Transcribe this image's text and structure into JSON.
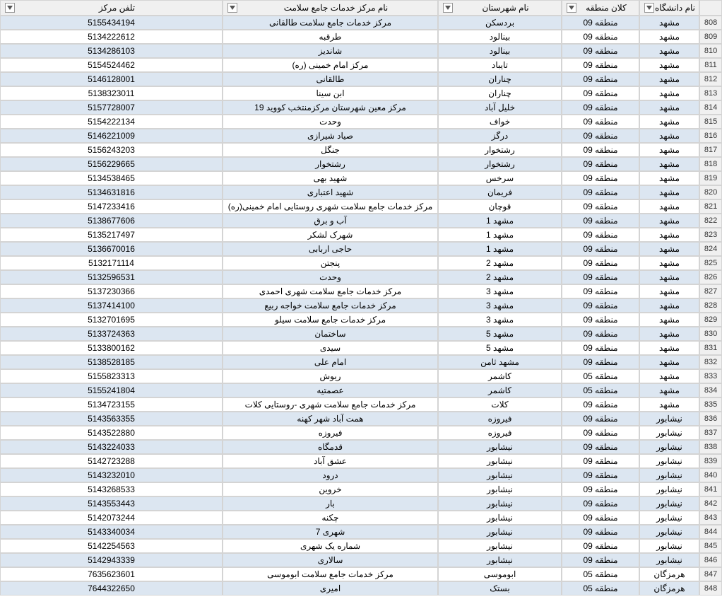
{
  "headers": [
    "نام دانشگاه",
    "کلان منطقه",
    "نام شهرستان",
    "نام مرکز خدمات جامع سلامت",
    "تلفن مرکز"
  ],
  "startRow": 808,
  "colors": {
    "even_row_bg": "#dce6f1",
    "odd_row_bg": "#ffffff",
    "header_bg": "#f0f0f0",
    "border": "#d4d4d4"
  },
  "rows": [
    {
      "n": 808,
      "uni": "مشهد",
      "region": "منطقه 09",
      "city": "بردسکن",
      "center": "مرکز خدمات جامع سلامت طالقانی",
      "phone": "5155434194"
    },
    {
      "n": 809,
      "uni": "مشهد",
      "region": "منطقه 09",
      "city": "بینالود",
      "center": "طرقبه",
      "phone": "5134222612"
    },
    {
      "n": 810,
      "uni": "مشهد",
      "region": "منطقه 09",
      "city": "بینالود",
      "center": "شاندیز",
      "phone": "5134286103"
    },
    {
      "n": 811,
      "uni": "مشهد",
      "region": "منطقه 09",
      "city": "تایباد",
      "center": "مرکز امام خمینی (ره)",
      "phone": "5154524462"
    },
    {
      "n": 812,
      "uni": "مشهد",
      "region": "منطقه 09",
      "city": "چناران",
      "center": "طالقانی",
      "phone": "5146128001"
    },
    {
      "n": 813,
      "uni": "مشهد",
      "region": "منطقه 09",
      "city": "چناران",
      "center": "ابن سینا",
      "phone": "5138323011"
    },
    {
      "n": 814,
      "uni": "مشهد",
      "region": "منطقه 09",
      "city": "خلیل آباد",
      "center": "مرکز معین شهرستان مرکزمنتخب کووید 19",
      "phone": "5157728007"
    },
    {
      "n": 815,
      "uni": "مشهد",
      "region": "منطقه 09",
      "city": "خواف",
      "center": "وحدت",
      "phone": "5154222134"
    },
    {
      "n": 816,
      "uni": "مشهد",
      "region": "منطقه 09",
      "city": "درگز",
      "center": "صیاد شیرازی",
      "phone": "5146221009"
    },
    {
      "n": 817,
      "uni": "مشهد",
      "region": "منطقه 09",
      "city": "رشتخوار",
      "center": "جنگل",
      "phone": "5156243203"
    },
    {
      "n": 818,
      "uni": "مشهد",
      "region": "منطقه 09",
      "city": "رشتخوار",
      "center": "رشتخوار",
      "phone": "5156229665"
    },
    {
      "n": 819,
      "uni": "مشهد",
      "region": "منطقه 09",
      "city": "سرخس",
      "center": "شهید بهی",
      "phone": "5134538465"
    },
    {
      "n": 820,
      "uni": "مشهد",
      "region": "منطقه 09",
      "city": "فریمان",
      "center": "شهید اعتباری",
      "phone": "5134631816"
    },
    {
      "n": 821,
      "uni": "مشهد",
      "region": "منطقه 09",
      "city": "قوچان",
      "center": "مرکز خدمات جامع سلامت شهری روستایی امام خمینی(ره)",
      "phone": "5147233416"
    },
    {
      "n": 822,
      "uni": "مشهد",
      "region": "منطقه 09",
      "city": "مشهد 1",
      "center": "آب و برق",
      "phone": "5138677606"
    },
    {
      "n": 823,
      "uni": "مشهد",
      "region": "منطقه 09",
      "city": "مشهد 1",
      "center": "شهرک لشکر",
      "phone": "5135217497"
    },
    {
      "n": 824,
      "uni": "مشهد",
      "region": "منطقه 09",
      "city": "مشهد 1",
      "center": "حاجی اربابی",
      "phone": "5136670016"
    },
    {
      "n": 825,
      "uni": "مشهد",
      "region": "منطقه 09",
      "city": "مشهد 2",
      "center": "پنجتن",
      "phone": "5132171114"
    },
    {
      "n": 826,
      "uni": "مشهد",
      "region": "منطقه 09",
      "city": "مشهد 2",
      "center": "وحدت",
      "phone": "5132596531"
    },
    {
      "n": 827,
      "uni": "مشهد",
      "region": "منطقه 09",
      "city": "مشهد 3",
      "center": "مرکز خدمات جامع سلامت شهری احمدی",
      "phone": "5137230366"
    },
    {
      "n": 828,
      "uni": "مشهد",
      "region": "منطقه 09",
      "city": "مشهد 3",
      "center": "مرکز خدمات جامع سلامت خواجه ربیع",
      "phone": "5137414100"
    },
    {
      "n": 829,
      "uni": "مشهد",
      "region": "منطقه 09",
      "city": "مشهد 3",
      "center": "مرکز خدمات جامع سلامت سیلو",
      "phone": "5132701695"
    },
    {
      "n": 830,
      "uni": "مشهد",
      "region": "منطقه 09",
      "city": "مشهد 5",
      "center": "ساختمان",
      "phone": "5133724363"
    },
    {
      "n": 831,
      "uni": "مشهد",
      "region": "منطقه 09",
      "city": "مشهد 5",
      "center": "سیدی",
      "phone": "5133800162"
    },
    {
      "n": 832,
      "uni": "مشهد",
      "region": "منطقه 09",
      "city": "مشهد ثامن",
      "center": "امام علی",
      "phone": "5138528185"
    },
    {
      "n": 833,
      "uni": "مشهد",
      "region": "منطقه 05",
      "city": "کاشمر",
      "center": "ریوش",
      "phone": "5155823313"
    },
    {
      "n": 834,
      "uni": "مشهد",
      "region": "منطقه 05",
      "city": "کاشمر",
      "center": "عصمتیه",
      "phone": "5155241804"
    },
    {
      "n": 835,
      "uni": "مشهد",
      "region": "منطقه 09",
      "city": "کلات",
      "center": "مرکز خدمات جامع سلامت شهری -روستایی کلات",
      "phone": "5134723155"
    },
    {
      "n": 836,
      "uni": "نیشابور",
      "region": "منطقه 09",
      "city": "فیروزه",
      "center": "همت آباد شهر کهنه",
      "phone": "5143563355"
    },
    {
      "n": 837,
      "uni": "نیشابور",
      "region": "منطقه 09",
      "city": "فیروزه",
      "center": "فیروزه",
      "phone": "5143522880"
    },
    {
      "n": 838,
      "uni": "نیشابور",
      "region": "منطقه 09",
      "city": "نیشابور",
      "center": "قدمگاه",
      "phone": "5143224033"
    },
    {
      "n": 839,
      "uni": "نیشابور",
      "region": "منطقه 09",
      "city": "نیشابور",
      "center": "عشق آباد",
      "phone": "5142723288"
    },
    {
      "n": 840,
      "uni": "نیشابور",
      "region": "منطقه 09",
      "city": "نیشابور",
      "center": "درود",
      "phone": "5143232010"
    },
    {
      "n": 841,
      "uni": "نیشابور",
      "region": "منطقه 09",
      "city": "نیشابور",
      "center": "خروین",
      "phone": "5143268533"
    },
    {
      "n": 842,
      "uni": "نیشابور",
      "region": "منطقه 09",
      "city": "نیشابور",
      "center": "بار",
      "phone": "5143553443"
    },
    {
      "n": 843,
      "uni": "نیشابور",
      "region": "منطقه 09",
      "city": "نیشابور",
      "center": "چکنه",
      "phone": "5142073244"
    },
    {
      "n": 844,
      "uni": "نیشابور",
      "region": "منطقه 09",
      "city": "نیشابور",
      "center": "شهری 7",
      "phone": "5143340034"
    },
    {
      "n": 845,
      "uni": "نیشابور",
      "region": "منطقه 09",
      "city": "نیشابور",
      "center": "شماره یک شهری",
      "phone": "5142254563"
    },
    {
      "n": 846,
      "uni": "نیشابور",
      "region": "منطقه 09",
      "city": "نیشابور",
      "center": "سالاری",
      "phone": "5142943339"
    },
    {
      "n": 847,
      "uni": "هرمزگان",
      "region": "منطقه 05",
      "city": "ابوموسی",
      "center": "مرکز خدمات جامع سلامت ابوموسی",
      "phone": "7635623601"
    },
    {
      "n": 848,
      "uni": "هرمزگان",
      "region": "منطقه 05",
      "city": "بستک",
      "center": "امیری",
      "phone": "7644322650"
    }
  ]
}
